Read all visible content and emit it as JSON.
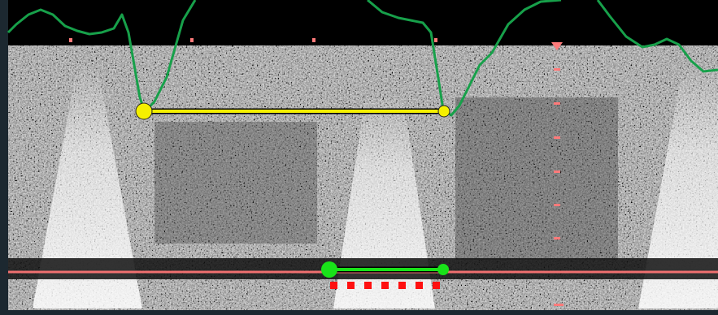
{
  "colors": {
    "frame": "#1c2830",
    "header": "#000000",
    "ecg_trace": "#17a04a",
    "yellow_caliper": "#f5f000",
    "green_caliper": "#19e219",
    "baseline": "#f07070",
    "depth_markers": "#ff7a7a",
    "red_dots": "#ff1010"
  },
  "icons": {
    "yellow_caliper": "caliper-endpoint-dots",
    "green_caliper": "caliper-endpoint-dots",
    "scale_marker": "triangle-down-icon"
  }
}
